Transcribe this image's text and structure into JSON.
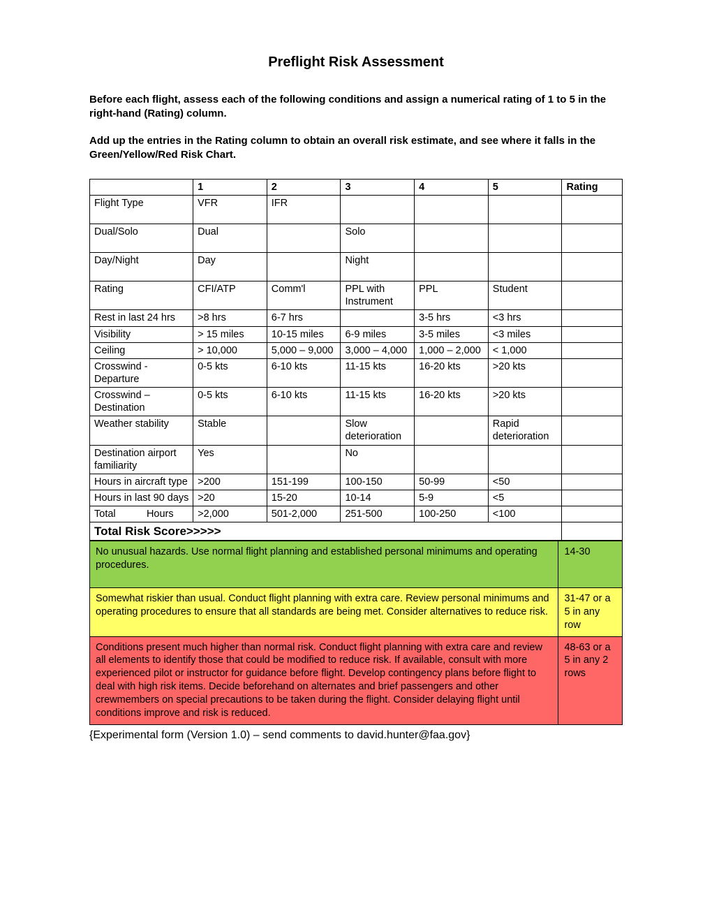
{
  "title": "Preflight Risk Assessment",
  "instructions": [
    "Before each flight, assess each of the following conditions and assign a numerical rating of 1 to 5 in the right-hand (Rating) column.",
    "Add up the entries in the Rating column to obtain an overall risk estimate, and see where it falls in the Green/Yellow/Red Risk Chart."
  ],
  "columns": [
    "",
    "1",
    "2",
    "3",
    "4",
    "5",
    "Rating"
  ],
  "rows": [
    {
      "label": "Flight Type",
      "c": [
        "VFR",
        "IFR",
        "",
        "",
        "",
        ""
      ],
      "tall": true
    },
    {
      "label": "Dual/Solo",
      "c": [
        "Dual",
        "",
        "Solo",
        "",
        "",
        ""
      ],
      "tall": true
    },
    {
      "label": "Day/Night",
      "c": [
        "Day",
        "",
        "Night",
        "",
        "",
        ""
      ],
      "tall": true
    },
    {
      "label": "Rating",
      "c": [
        "CFI/ATP",
        "Comm'l",
        "PPL with Instrument",
        "PPL",
        "Student",
        ""
      ]
    },
    {
      "label": "Rest in last 24 hrs",
      "c": [
        ">8 hrs",
        "6-7 hrs",
        "",
        "3-5 hrs",
        "<3 hrs",
        ""
      ]
    },
    {
      "label": "Visibility",
      "c": [
        "> 15 miles",
        "10-15 miles",
        "6-9 miles",
        "3-5 miles",
        "<3 miles",
        ""
      ]
    },
    {
      "label": "Ceiling",
      "c": [
        "> 10,000",
        "5,000 – 9,000",
        "3,000 – 4,000",
        "1,000 – 2,000",
        "< 1,000",
        ""
      ]
    },
    {
      "label": "Crosswind - Departure",
      "c": [
        "0-5 kts",
        "6-10 kts",
        "11-15 kts",
        "16-20 kts",
        ">20 kts",
        ""
      ]
    },
    {
      "label": "Crosswind – Destination",
      "c": [
        "0-5 kts",
        "6-10 kts",
        "11-15 kts",
        "16-20 kts",
        ">20 kts",
        ""
      ]
    },
    {
      "label": "Weather stability",
      "c": [
        "Stable",
        "",
        "Slow deterioration",
        "",
        "Rapid deterioration",
        ""
      ]
    },
    {
      "label": "Destination airport familiarity",
      "c": [
        "Yes",
        "",
        "No",
        "",
        "",
        ""
      ]
    },
    {
      "label": "Hours in aircraft type",
      "c": [
        ">200",
        "151-199",
        "100-150",
        "50-99",
        "<50",
        ""
      ]
    },
    {
      "label": "Hours in last 90 days",
      "c": [
        ">20",
        "15-20",
        "10-14",
        "5-9",
        "<5",
        ""
      ]
    },
    {
      "label": "Total           Hours",
      "c": [
        ">2,000",
        "501-2,000",
        "251-500",
        "100-250",
        "<100",
        ""
      ]
    }
  ],
  "total_label": "Total Risk Score>>>>>",
  "risk_rows": [
    {
      "cls": "green",
      "desc": "No unusual hazards.  Use normal flight planning and established personal minimums and operating procedures.",
      "range": "14-30",
      "pad": true
    },
    {
      "cls": "yellow",
      "desc": "Somewhat riskier than usual.  Conduct  flight planning with extra care.  Review personal minimums and operating procedures to ensure that all standards are being met.  Consider alternatives to reduce risk.",
      "range": "31-47 or a 5 in any row"
    },
    {
      "cls": "red",
      "desc": "Conditions present much higher than normal risk.  Conduct flight planning with extra care and review all elements to identify those that could be modified to reduce risk.  If available, consult with more experienced pilot or instructor for guidance before flight.  Develop contingency plans before flight to deal with high risk items.  Decide beforehand on alternates and brief passengers and other crewmembers on special precautions to be taken during the flight.  Consider delaying flight until conditions improve and risk is reduced.",
      "range": "48-63 or a 5 in any 2 rows"
    }
  ],
  "footer": "{Experimental form (Version 1.0) – send comments to david.hunter@faa.gov}",
  "colors": {
    "green": "#92d050",
    "yellow": "#ffff66",
    "red": "#ff6666",
    "border": "#000000",
    "background": "#ffffff"
  }
}
